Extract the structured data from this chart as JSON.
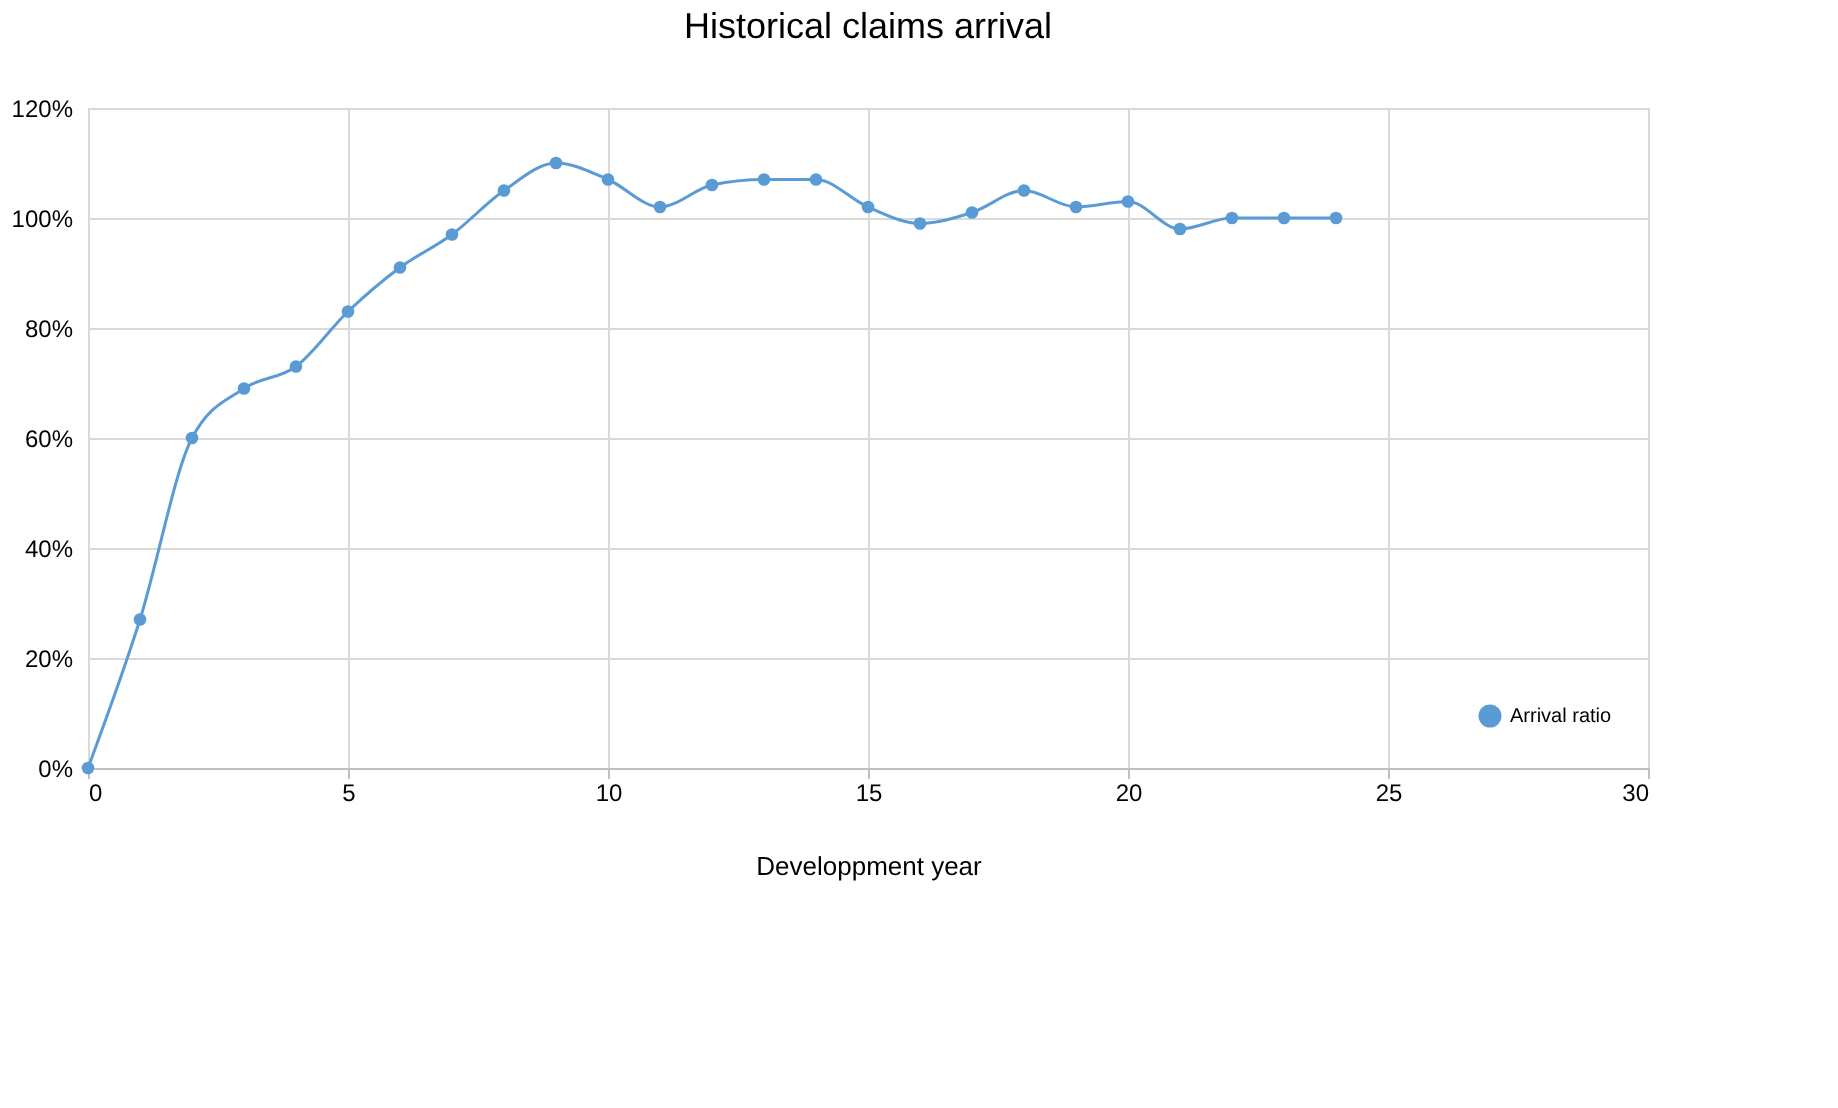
{
  "chart_data": {
    "type": "line",
    "title": "Historical claims arrival",
    "xlabel": "Developpment year",
    "x": [
      0,
      1,
      2,
      3,
      4,
      5,
      6,
      7,
      8,
      9,
      10,
      11,
      12,
      13,
      14,
      15,
      16,
      17,
      18,
      19,
      20,
      21,
      22,
      23,
      24
    ],
    "series": [
      {
        "name": "Arrival ratio",
        "color": "#5b9bd5",
        "values": [
          0,
          27,
          60,
          69,
          73,
          83,
          91,
          97,
          105,
          110,
          107,
          102,
          106,
          107,
          107,
          102,
          99,
          101,
          105,
          102,
          103,
          98,
          100,
          100,
          100
        ]
      }
    ],
    "xlim": [
      0,
      30
    ],
    "xticks": [
      0,
      5,
      10,
      15,
      20,
      25,
      30
    ],
    "ylim": [
      0,
      120
    ],
    "yticks": [
      {
        "value": 0,
        "label": "0%"
      },
      {
        "value": 20,
        "label": "20%"
      },
      {
        "value": 40,
        "label": "40%"
      },
      {
        "value": 60,
        "label": "60%"
      },
      {
        "value": 80,
        "label": "80%"
      },
      {
        "value": 100,
        "label": "100%"
      },
      {
        "value": 120,
        "label": "120%"
      }
    ],
    "grid": true,
    "legend": "bottom right",
    "marker": "circle",
    "line_style": "solid"
  }
}
